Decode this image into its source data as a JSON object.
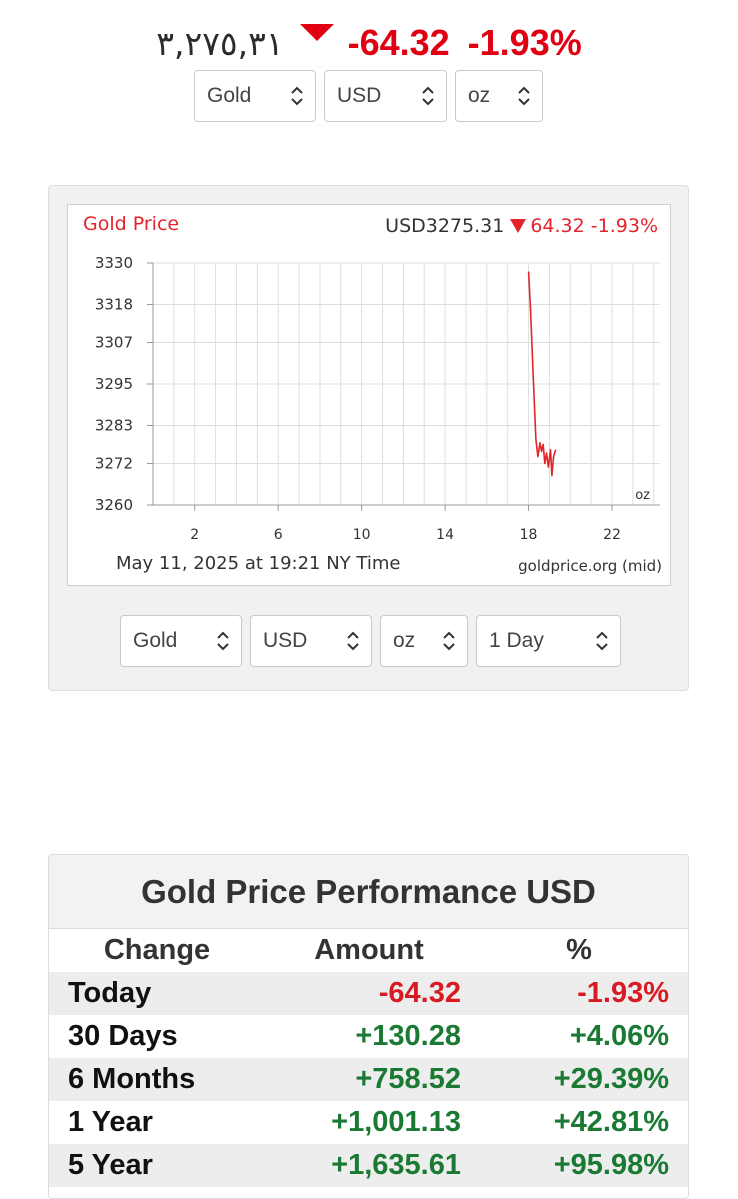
{
  "header": {
    "price_local": "٣,٢٧٥,٣١",
    "change": "-64.32",
    "change_pct": "-1.93%",
    "direction": "down",
    "selects": {
      "metal": "Gold",
      "currency": "USD",
      "unit": "oz"
    }
  },
  "chart_panel": {
    "title": "Gold Price",
    "quote_price": "USD3275.31",
    "quote_change": "64.32",
    "quote_change_pct": "-1.93%",
    "unit_label": "oz",
    "timestamp": "May 11, 2025 at 19:21 NY Time",
    "source": "goldprice.org (mid)",
    "selects": {
      "metal": "Gold",
      "currency": "USD",
      "unit": "oz",
      "period": "1 Day"
    }
  },
  "chart_data": {
    "type": "line",
    "title": "Gold Price",
    "xlabel": "",
    "ylabel": "",
    "x_ticks": [
      2,
      6,
      10,
      14,
      18,
      22
    ],
    "y_ticks": [
      3260,
      3272,
      3283,
      3295,
      3307,
      3318,
      3330
    ],
    "xlim": [
      0,
      24.3
    ],
    "ylim": [
      3260,
      3330
    ],
    "grid": true,
    "line_color": "#e3242b",
    "series": [
      {
        "x": [
          18.0,
          18.1,
          18.22,
          18.35,
          18.45,
          18.55,
          18.62,
          18.7,
          18.78,
          18.86,
          18.95,
          19.05,
          19.12,
          19.2,
          19.3
        ],
        "y": [
          3327.5,
          3316,
          3298,
          3279,
          3274,
          3278,
          3275.5,
          3277.5,
          3272,
          3275,
          3271,
          3276,
          3268.5,
          3274,
          3276
        ]
      }
    ]
  },
  "performance": {
    "title": "Gold Price Performance USD",
    "columns": [
      "Change",
      "Amount",
      "%"
    ],
    "rows": [
      {
        "label": "Today",
        "amount": "-64.32",
        "pct": "-1.93%",
        "sign": "neg"
      },
      {
        "label": "30 Days",
        "amount": "+130.28",
        "pct": "+4.06%",
        "sign": "pos"
      },
      {
        "label": "6 Months",
        "amount": "+758.52",
        "pct": "+29.39%",
        "sign": "pos"
      },
      {
        "label": "1 Year",
        "amount": "+1,001.13",
        "pct": "+42.81%",
        "sign": "pos"
      },
      {
        "label": "5 Year",
        "amount": "+1,635.61",
        "pct": "+95.98%",
        "sign": "pos"
      }
    ],
    "colors": {
      "negative": "#d81b23",
      "positive": "#1a7a33"
    }
  }
}
